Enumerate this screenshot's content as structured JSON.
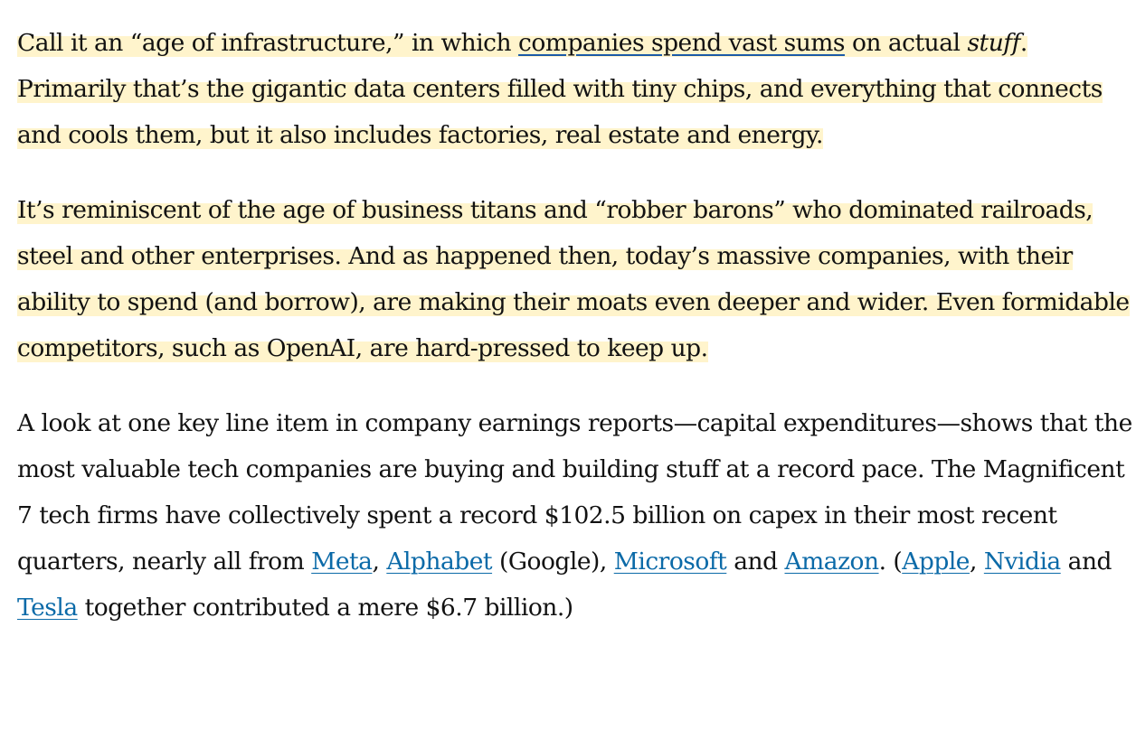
{
  "paragraphs": {
    "p1": {
      "t1": "Call it an “age of infrastructure,” in which ",
      "link": "companies spend vast sums",
      "t2": " on actual ",
      "em": "stuff",
      "t3": ". Primarily that’s the gigantic data centers filled with tiny chips, and everything that connects and cools them, but it also includes factories, real estate and energy."
    },
    "p2": {
      "text": "It’s reminiscent of the age of business titans and “robber barons” who dominated railroads, steel and other enterprises. And as happened then, today’s massive companies, with their ability to spend (and borrow), are making their moats even deeper and wider. Even formidable competitors, such as OpenAI, are hard-pressed to keep up."
    },
    "p3": {
      "t1": "A look at one key line item in company earnings reports—capital expenditures—shows that the most valuable tech companies are buying and building stuff at a record pace. The Magnificent 7 tech firms have collectively spent a record $102.5 billion on capex in their most recent quarters, nearly all from ",
      "meta": "Meta",
      "c1": ", ",
      "alphabet": "Alphabet",
      "c2": " (Google), ",
      "microsoft": "Microsoft",
      "c3": " and ",
      "amazon": "Amazon",
      "c4": ". (",
      "apple": "Apple",
      "c5": ", ",
      "nvidia": "Nvidia",
      "c6": " and ",
      "tesla": "Tesla",
      "t2": " together contributed a mere $6.7 billion.)"
    }
  },
  "colors": {
    "highlight_fill": "#fff4cc",
    "highlight_underline": "#ffd93d",
    "link": "#0b6aa8",
    "text": "#121212"
  }
}
